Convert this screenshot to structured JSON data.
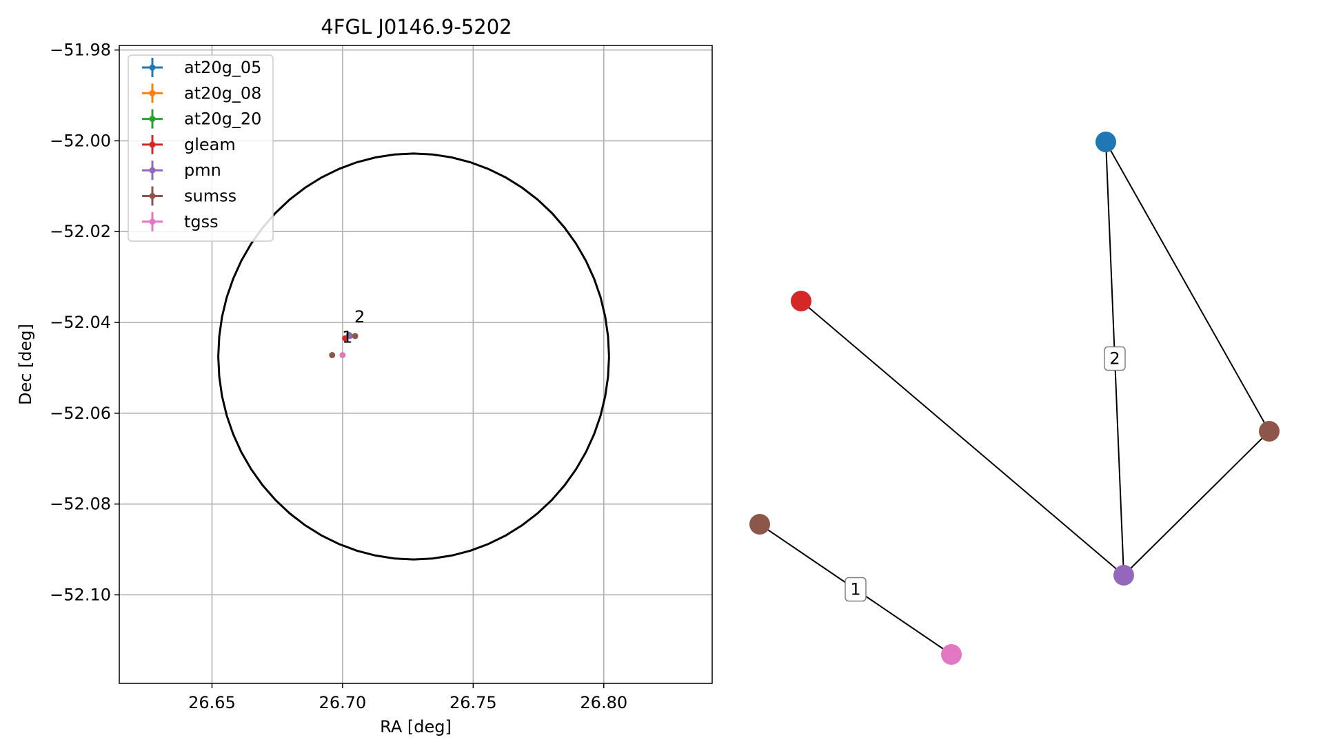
{
  "chart_data": [
    {
      "type": "scatter",
      "title": "4FGL J0146.9-5202",
      "xlabel": "RA [deg]",
      "ylabel": "Dec [deg]",
      "xlim": [
        26.6145,
        26.8415
      ],
      "ylim": [
        -52.1195,
        -51.979
      ],
      "xticks": [
        26.65,
        26.7,
        26.75,
        26.8
      ],
      "xtick_labels": [
        "26.65",
        "26.70",
        "26.75",
        "26.80"
      ],
      "yticks": [
        -51.98,
        -52.0,
        -52.02,
        -52.04,
        -52.06,
        -52.08,
        -52.1
      ],
      "ytick_labels": [
        "−51.98",
        "−52.00",
        "−52.02",
        "−52.04",
        "−52.06",
        "−52.08",
        "−52.10"
      ],
      "grid": true,
      "legend_position": "upper-left",
      "ellipse": {
        "center": [
          26.7272,
          -52.0475
        ],
        "ra_radius": 0.0748,
        "dec_radius": 0.0447
      },
      "series": [
        {
          "name": "at20g_05",
          "color": "#1f77b4",
          "points": [
            {
              "x": 26.7025,
              "y": -52.0428
            }
          ]
        },
        {
          "name": "at20g_08",
          "color": "#ff7f0e",
          "points": [
            {
              "x": 26.7025,
              "y": -52.0428
            }
          ]
        },
        {
          "name": "at20g_20",
          "color": "#2ca02c",
          "points": [
            {
              "x": 26.7025,
              "y": -52.0428
            }
          ]
        },
        {
          "name": "gleam",
          "color": "#d62728",
          "points": [
            {
              "x": 26.701,
              "y": -52.0435
            }
          ]
        },
        {
          "name": "pmn",
          "color": "#9467bd",
          "points": [
            {
              "x": 26.7028,
              "y": -52.043
            }
          ]
        },
        {
          "name": "sumss",
          "color": "#8c564b",
          "points": [
            {
              "x": 26.696,
              "y": -52.0472
            },
            {
              "x": 26.7048,
              "y": -52.043
            }
          ]
        },
        {
          "name": "tgss",
          "color": "#e377c2",
          "points": [
            {
              "x": 26.7,
              "y": -52.0472
            }
          ]
        }
      ],
      "annotations": [
        {
          "text": "2",
          "x": 26.7045,
          "y": -52.04
        },
        {
          "text": "1",
          "x": 26.6998,
          "y": -52.0445
        }
      ]
    },
    {
      "type": "network",
      "nodes": [
        {
          "id": "blue",
          "color": "#1f77b4"
        },
        {
          "id": "red",
          "color": "#d62728"
        },
        {
          "id": "brown-right",
          "color": "#8c564b"
        },
        {
          "id": "brown-left",
          "color": "#8c564b"
        },
        {
          "id": "purple",
          "color": "#9467bd"
        },
        {
          "id": "pink",
          "color": "#e377c2"
        }
      ],
      "edges": [
        {
          "source": "blue",
          "target": "purple",
          "label": "2"
        },
        {
          "source": "blue",
          "target": "brown-right",
          "label": ""
        },
        {
          "source": "red",
          "target": "purple",
          "label": ""
        },
        {
          "source": "brown-right",
          "target": "purple",
          "label": ""
        },
        {
          "source": "brown-left",
          "target": "pink",
          "label": "1"
        }
      ]
    }
  ]
}
